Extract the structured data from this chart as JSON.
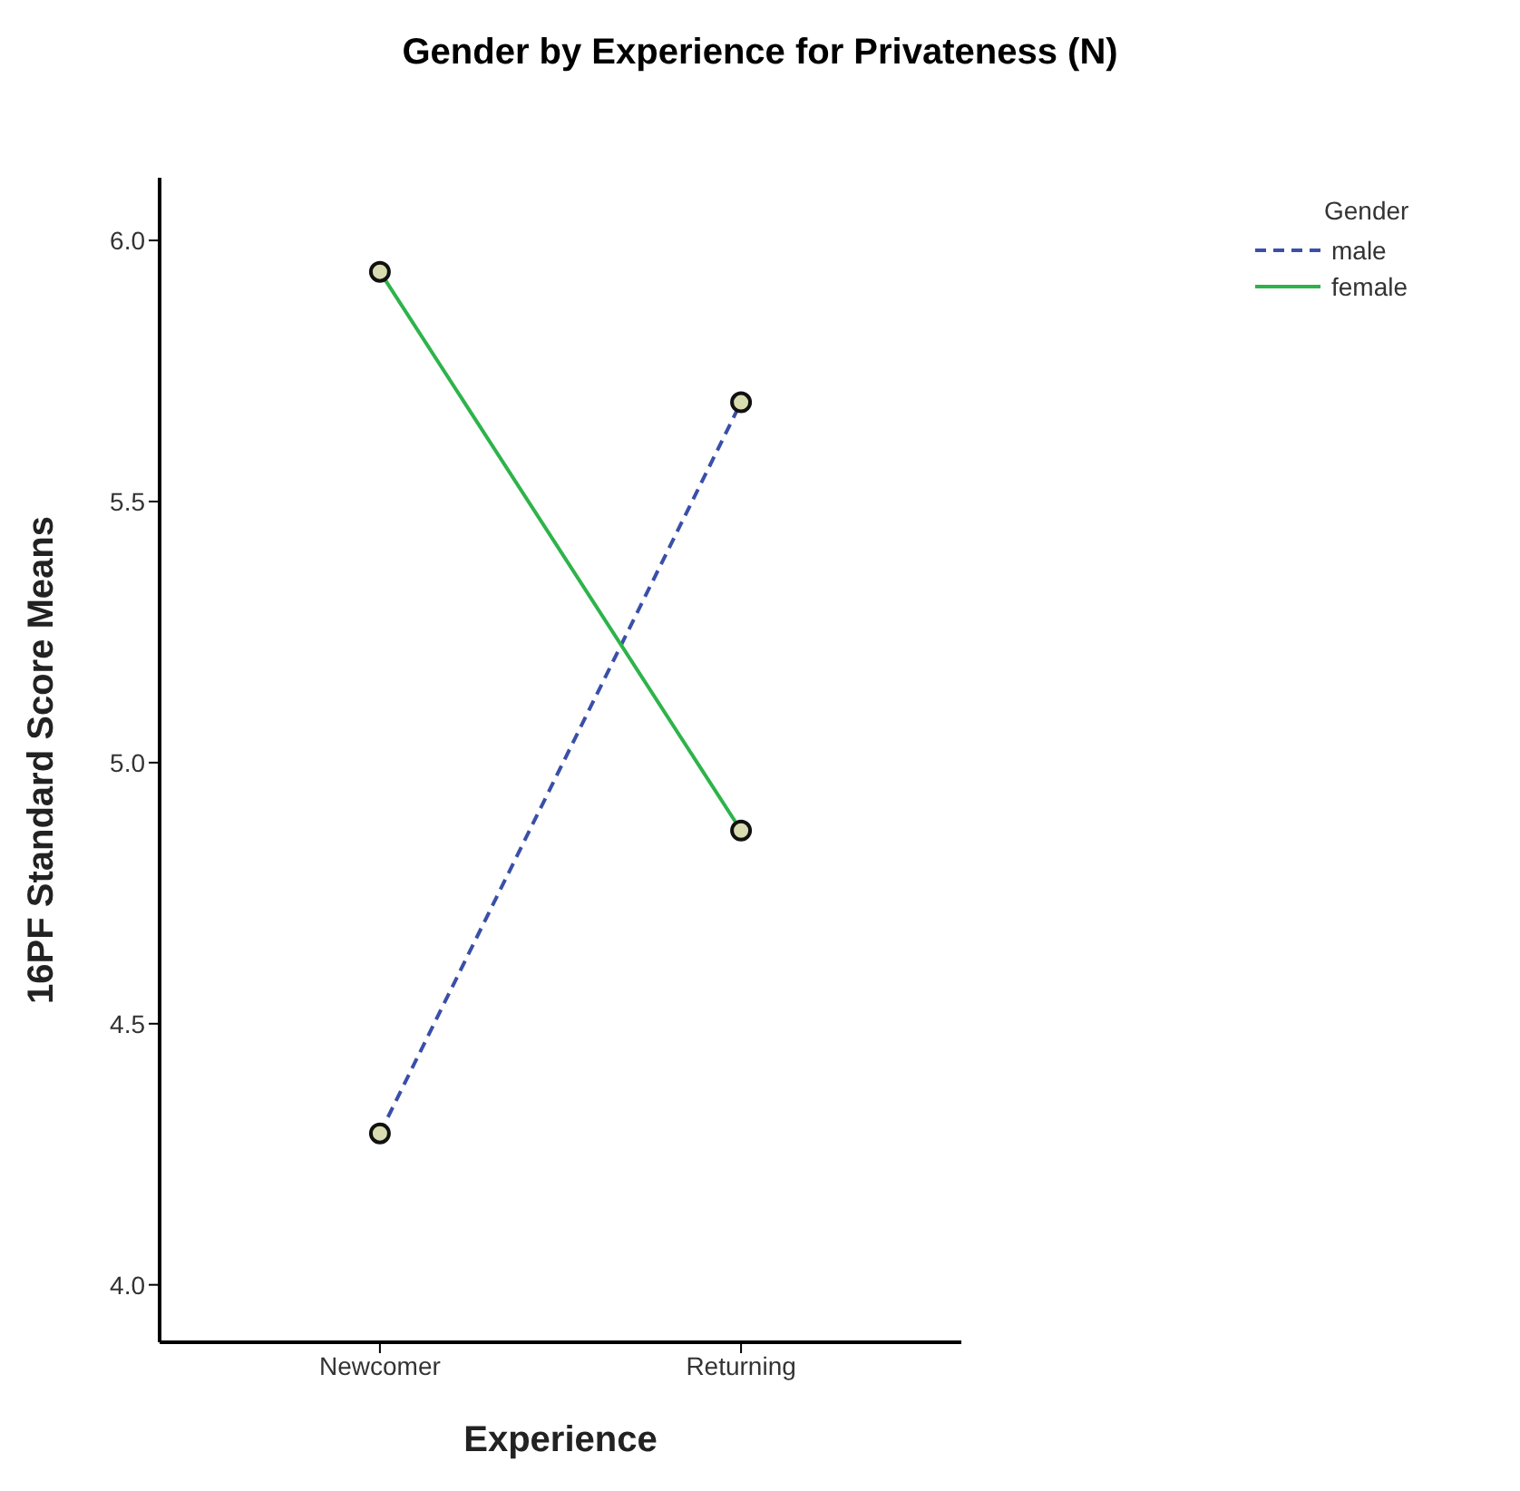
{
  "chart_data": {
    "type": "line",
    "title": "Gender by Experience for Privateness (N)",
    "xlabel": "Experience",
    "ylabel": "16PF Standard Score Means",
    "legend_title": "Gender",
    "categories": [
      "Newcomer",
      "Returning"
    ],
    "series": [
      {
        "name": "male",
        "color": "#3a4fa8",
        "line_style": "dashed",
        "values": [
          4.29,
          5.69
        ]
      },
      {
        "name": "female",
        "color": "#2eb34a",
        "line_style": "solid",
        "values": [
          5.94,
          4.87
        ]
      }
    ],
    "ylim": [
      3.89,
      6.12
    ],
    "yticks": [
      {
        "value": 4,
        "label": "4.0"
      },
      {
        "value": 4.5,
        "label": "4.5"
      },
      {
        "value": 5.0,
        "label": "5.0"
      },
      {
        "value": 5.5,
        "label": "5.5"
      },
      {
        "value": 6.0,
        "label": "6.0"
      }
    ],
    "grid": false,
    "legend": "top right",
    "marker": "circle"
  }
}
